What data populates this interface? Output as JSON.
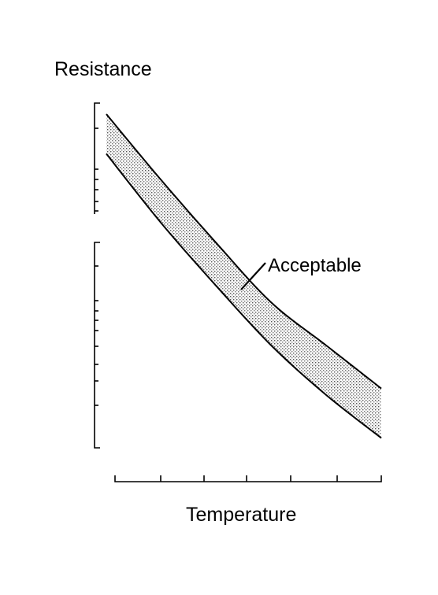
{
  "chart_data": {
    "type": "area",
    "title": "",
    "xlabel": "Temperature",
    "ylabel": "Resistance",
    "y_scale": "log",
    "grid": false,
    "legend": "none",
    "band": {
      "name": "Acceptable",
      "fill": "dotted gray",
      "upper": [
        [
          0.0,
          1.0
        ],
        [
          0.2,
          0.8
        ],
        [
          0.4,
          0.61
        ],
        [
          0.6,
          0.43
        ],
        [
          0.8,
          0.3
        ],
        [
          1.0,
          0.17
        ]
      ],
      "lower": [
        [
          0.0,
          0.88
        ],
        [
          0.2,
          0.67
        ],
        [
          0.4,
          0.48
        ],
        [
          0.6,
          0.3
        ],
        [
          0.8,
          0.15
        ],
        [
          1.0,
          0.02
        ]
      ]
    },
    "annotations": [
      "Acceptable"
    ],
    "colors": {
      "line": "#000000",
      "band": "#b8b8b8"
    }
  }
}
